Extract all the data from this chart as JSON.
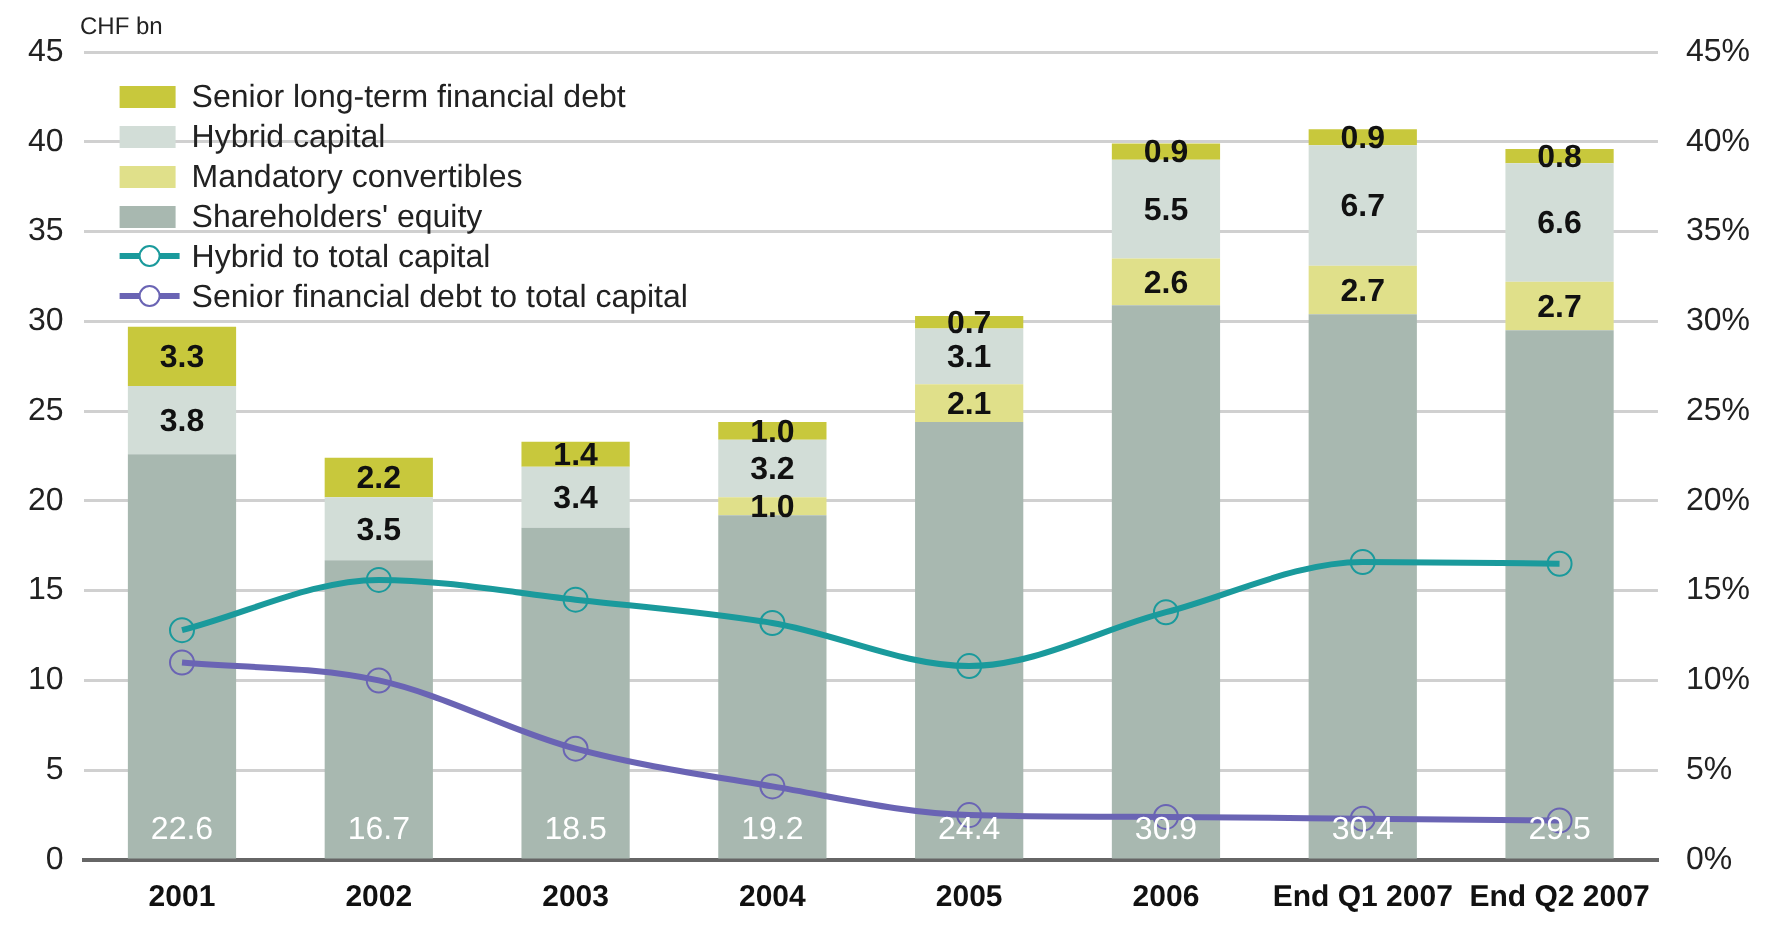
{
  "chart_data": {
    "type": "bar",
    "stacked": true,
    "ylabel": "CHF bn",
    "categories": [
      "2001",
      "2002",
      "2003",
      "2004",
      "2005",
      "2006",
      "End Q1 2007",
      "End Q2 2007"
    ],
    "series": [
      {
        "name": "Shareholders' equity",
        "color": "#a8b8b0",
        "values": [
          22.6,
          16.7,
          18.5,
          19.2,
          24.4,
          30.9,
          30.4,
          29.5
        ],
        "value_labels": [
          "22.6",
          "16.7",
          "18.5",
          "19.2",
          "24.4",
          "30.9",
          "30.4",
          "29.5"
        ]
      },
      {
        "name": "Mandatory convertibles",
        "color": "#e0e08a",
        "values": [
          null,
          null,
          null,
          1.0,
          2.1,
          2.6,
          2.7,
          2.7
        ],
        "value_labels": [
          null,
          null,
          null,
          "1.0",
          "2.1",
          "2.6",
          "2.7",
          "2.7"
        ]
      },
      {
        "name": "Hybrid capital",
        "color": "#d2ddd7",
        "values": [
          3.8,
          3.5,
          3.4,
          3.2,
          3.1,
          5.5,
          6.7,
          6.6
        ],
        "value_labels": [
          "3.8",
          "3.5",
          "3.4",
          "3.2",
          "3.1",
          "5.5",
          "6.7",
          "6.6"
        ]
      },
      {
        "name": "Senior long-term financial debt",
        "color": "#c8c83c",
        "values": [
          3.3,
          2.2,
          1.4,
          1.0,
          0.7,
          0.9,
          0.9,
          0.8
        ],
        "value_labels": [
          "3.3",
          "2.2",
          "1.4",
          "1.0",
          "0.7",
          "0.9",
          "0.9",
          "0.8"
        ]
      },
      {
        "name": "Hybrid to total capital",
        "type": "line",
        "axis": "y2",
        "color": "#1a9a9c",
        "values": [
          12.8,
          15.6,
          14.5,
          13.2,
          10.8,
          13.8,
          16.6,
          16.5
        ]
      },
      {
        "name": "Senior financial debt to total capital",
        "type": "line",
        "axis": "y2",
        "color": "#6a64b4",
        "values": [
          11.0,
          10.0,
          6.2,
          4.1,
          2.5,
          2.4,
          2.3,
          2.2
        ]
      }
    ],
    "ylim": [
      0,
      45
    ],
    "yticks": [
      0,
      5,
      10,
      15,
      20,
      25,
      30,
      35,
      40,
      45
    ],
    "y2lim": [
      0,
      45
    ],
    "y2ticks": [
      {
        "value": 0,
        "label": "0%"
      },
      {
        "value": 5,
        "label": "5%"
      },
      {
        "value": 10,
        "label": "10%"
      },
      {
        "value": 15,
        "label": "15%"
      },
      {
        "value": 20,
        "label": "20%"
      },
      {
        "value": 25,
        "label": "25%"
      },
      {
        "value": 30,
        "label": "30%"
      },
      {
        "value": 35,
        "label": "35%"
      },
      {
        "value": 40,
        "label": "40%"
      },
      {
        "value": 45,
        "label": "45%"
      }
    ],
    "grid": "y",
    "legend": "top left",
    "marker": "circle"
  }
}
